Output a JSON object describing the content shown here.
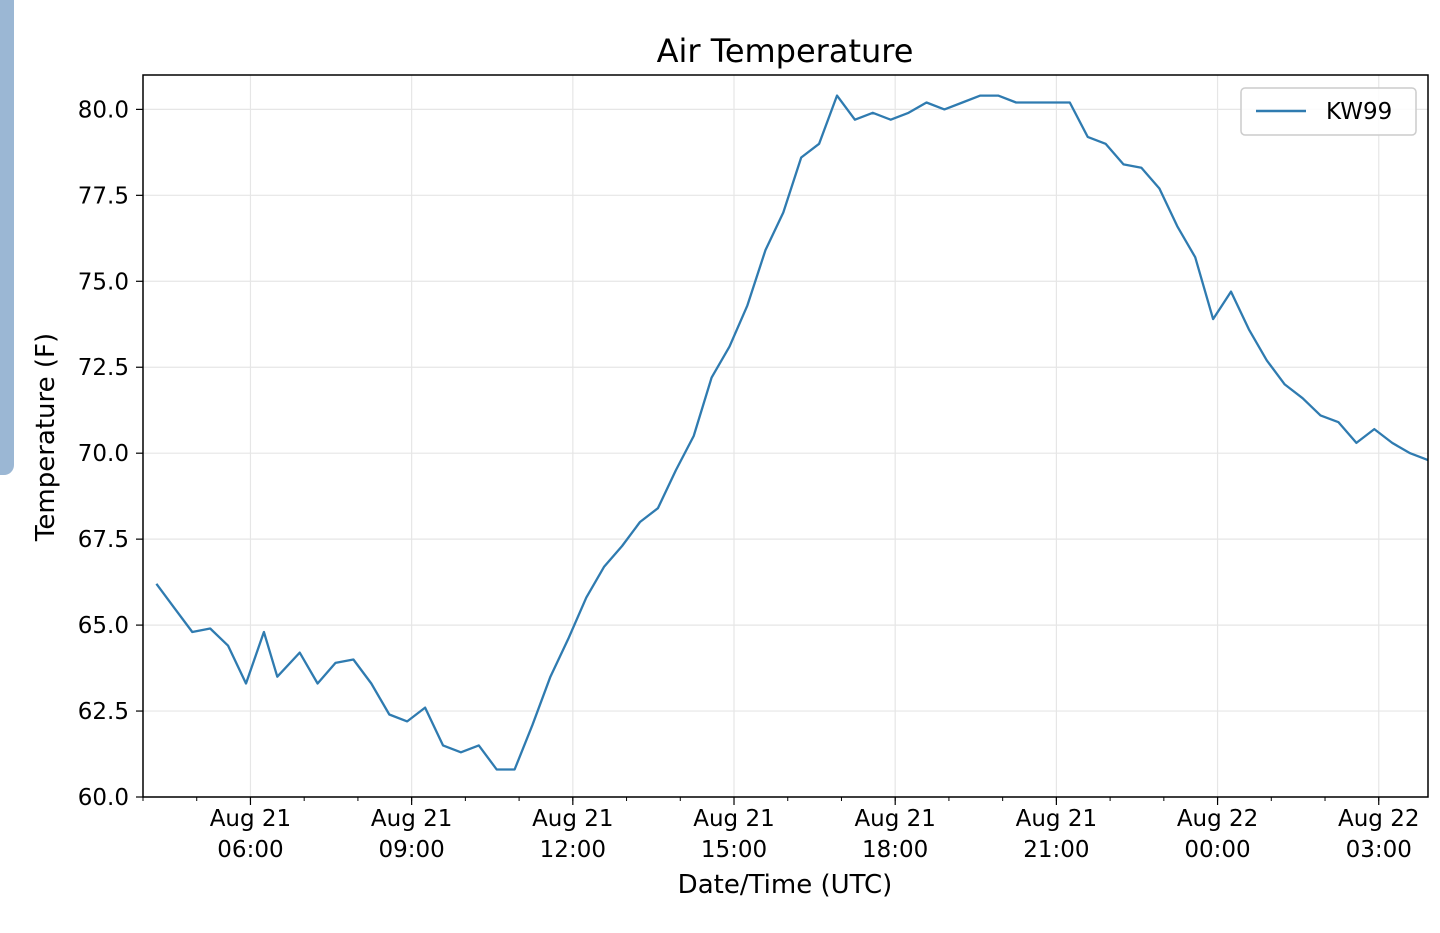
{
  "chart_data": {
    "type": "line",
    "title": "Air Temperature",
    "xlabel": "Date/Time (UTC)",
    "ylabel": "Temperature (F)",
    "ylim": [
      60,
      81
    ],
    "yticks": [
      "60.0",
      "62.5",
      "65.0",
      "67.5",
      "70.0",
      "72.5",
      "75.0",
      "77.5",
      "80.0"
    ],
    "xlim": [
      "2017-08-21 04:00",
      "2017-08-22 03:55"
    ],
    "xticks": [
      {
        "at": "2017-08-21 06:00",
        "date": "Aug 21",
        "time": "06:00"
      },
      {
        "at": "2017-08-21 09:00",
        "date": "Aug 21",
        "time": "09:00"
      },
      {
        "at": "2017-08-21 12:00",
        "date": "Aug 21",
        "time": "12:00"
      },
      {
        "at": "2017-08-21 15:00",
        "date": "Aug 21",
        "time": "15:00"
      },
      {
        "at": "2017-08-21 18:00",
        "date": "Aug 21",
        "time": "18:00"
      },
      {
        "at": "2017-08-21 21:00",
        "date": "Aug 21",
        "time": "21:00"
      },
      {
        "at": "2017-08-22 00:00",
        "date": "Aug 22",
        "time": "00:00"
      },
      {
        "at": "2017-08-22 03:00",
        "date": "Aug 22",
        "time": "03:00"
      }
    ],
    "grid": true,
    "legend_position": "top-right",
    "series": [
      {
        "name": "KW99",
        "color": "#2f7bb0",
        "points": [
          [
            "2017-08-21 04:15",
            66.2
          ],
          [
            "2017-08-21 04:35",
            65.5
          ],
          [
            "2017-08-21 04:55",
            64.8
          ],
          [
            "2017-08-21 05:15",
            64.9
          ],
          [
            "2017-08-21 05:35",
            64.4
          ],
          [
            "2017-08-21 05:55",
            63.3
          ],
          [
            "2017-08-21 06:15",
            64.8
          ],
          [
            "2017-08-21 06:30",
            63.5
          ],
          [
            "2017-08-21 06:55",
            64.2
          ],
          [
            "2017-08-21 07:15",
            63.3
          ],
          [
            "2017-08-21 07:35",
            63.9
          ],
          [
            "2017-08-21 07:55",
            64.0
          ],
          [
            "2017-08-21 08:15",
            63.3
          ],
          [
            "2017-08-21 08:35",
            62.4
          ],
          [
            "2017-08-21 08:55",
            62.2
          ],
          [
            "2017-08-21 09:15",
            62.6
          ],
          [
            "2017-08-21 09:35",
            61.5
          ],
          [
            "2017-08-21 09:55",
            61.3
          ],
          [
            "2017-08-21 10:15",
            61.5
          ],
          [
            "2017-08-21 10:35",
            60.8
          ],
          [
            "2017-08-21 10:55",
            60.8
          ],
          [
            "2017-08-21 11:15",
            62.1
          ],
          [
            "2017-08-21 11:35",
            63.5
          ],
          [
            "2017-08-21 11:55",
            64.6
          ],
          [
            "2017-08-21 12:15",
            65.8
          ],
          [
            "2017-08-21 12:35",
            66.7
          ],
          [
            "2017-08-21 12:55",
            67.3
          ],
          [
            "2017-08-21 13:15",
            68.0
          ],
          [
            "2017-08-21 13:35",
            68.4
          ],
          [
            "2017-08-21 13:55",
            69.5
          ],
          [
            "2017-08-21 14:15",
            70.5
          ],
          [
            "2017-08-21 14:35",
            72.2
          ],
          [
            "2017-08-21 14:55",
            73.1
          ],
          [
            "2017-08-21 15:15",
            74.3
          ],
          [
            "2017-08-21 15:35",
            75.9
          ],
          [
            "2017-08-21 15:55",
            77.0
          ],
          [
            "2017-08-21 16:15",
            78.6
          ],
          [
            "2017-08-21 16:35",
            79.0
          ],
          [
            "2017-08-21 16:55",
            80.4
          ],
          [
            "2017-08-21 17:15",
            79.7
          ],
          [
            "2017-08-21 17:35",
            79.9
          ],
          [
            "2017-08-21 17:55",
            79.7
          ],
          [
            "2017-08-21 18:15",
            79.9
          ],
          [
            "2017-08-21 18:35",
            80.2
          ],
          [
            "2017-08-21 18:55",
            80.0
          ],
          [
            "2017-08-21 19:15",
            80.2
          ],
          [
            "2017-08-21 19:35",
            80.4
          ],
          [
            "2017-08-21 19:55",
            80.4
          ],
          [
            "2017-08-21 20:15",
            80.2
          ],
          [
            "2017-08-21 20:35",
            80.2
          ],
          [
            "2017-08-21 20:55",
            80.2
          ],
          [
            "2017-08-21 21:15",
            80.2
          ],
          [
            "2017-08-21 21:35",
            79.2
          ],
          [
            "2017-08-21 21:55",
            79.0
          ],
          [
            "2017-08-21 22:15",
            78.4
          ],
          [
            "2017-08-21 22:35",
            78.3
          ],
          [
            "2017-08-21 22:55",
            77.7
          ],
          [
            "2017-08-21 23:15",
            76.6
          ],
          [
            "2017-08-21 23:35",
            75.7
          ],
          [
            "2017-08-21 23:55",
            73.9
          ],
          [
            "2017-08-22 00:15",
            74.7
          ],
          [
            "2017-08-22 00:35",
            73.6
          ],
          [
            "2017-08-22 00:55",
            72.7
          ],
          [
            "2017-08-22 01:15",
            72.0
          ],
          [
            "2017-08-22 01:35",
            71.6
          ],
          [
            "2017-08-22 01:55",
            71.1
          ],
          [
            "2017-08-22 02:15",
            70.9
          ],
          [
            "2017-08-22 02:35",
            70.3
          ],
          [
            "2017-08-22 02:55",
            70.7
          ],
          [
            "2017-08-22 03:15",
            70.3
          ],
          [
            "2017-08-22 03:35",
            70.0
          ],
          [
            "2017-08-22 03:55",
            69.8
          ]
        ]
      }
    ]
  }
}
